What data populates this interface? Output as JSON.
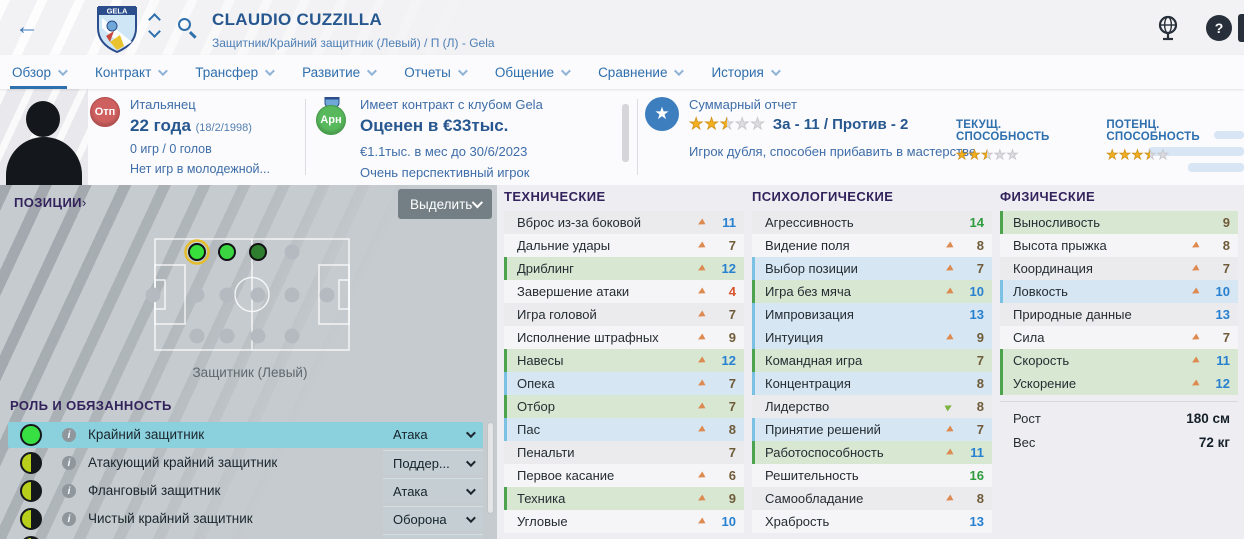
{
  "header": {
    "title": "CLAUDIO CUZZILLA",
    "subtitle": "Защитник/Крайний защитник (Левый) / П (Л) - Gela",
    "club": "GELA"
  },
  "tabs": [
    {
      "label": "Обзор",
      "active": true
    },
    {
      "label": "Контракт",
      "active": false
    },
    {
      "label": "Трансфер",
      "active": false
    },
    {
      "label": "Развитие",
      "active": false
    },
    {
      "label": "Отчеты",
      "active": false
    },
    {
      "label": "Общение",
      "active": false
    },
    {
      "label": "Сравнение",
      "active": false
    },
    {
      "label": "История",
      "active": false
    }
  ],
  "info": {
    "personal": {
      "badge": "Отп",
      "nationality": "Итальянец",
      "age": "22 года",
      "birthdate": "(18/2/1998)",
      "appearances": "0 игр / 0 голов",
      "youth": "Нет игр в молодежной..."
    },
    "contract": {
      "badge": "Арн",
      "line1": "Имеет контракт с клубом Gela",
      "line2": "Оценен в €33тыс.",
      "line3": "€1.1тыс. в мес до 30/6/2023",
      "line4": "Очень перспективный игрок"
    },
    "report": {
      "title": "Суммарный отчет",
      "stars": 2.5,
      "votes": "За - 11 / Против - 2",
      "summary": "Игрок дубля, способен прибавить в мастерстве"
    },
    "ability": {
      "current_label": "ТЕКУЩ. СПОСОБНОСТЬ",
      "current_stars": 2.5,
      "potential_label": "ПОТЕНЦ. СПОСОБНОСТЬ",
      "potential_stars": 3.5
    }
  },
  "positions": {
    "title": "ПОЗИЦИИ",
    "chevron": "›",
    "select_button": "Выделить",
    "position_label": "Защитник (Левый)"
  },
  "roles": {
    "title": "РОЛЬ И ОБЯЗАННОСТЬ",
    "items": [
      {
        "name": "Крайний защитник",
        "duty": "Атака",
        "selected": true,
        "marker": "full"
      },
      {
        "name": "Атакующий крайний защитник",
        "duty": "Поддер...",
        "selected": false,
        "marker": "half"
      },
      {
        "name": "Фланговый защитник",
        "duty": "Атака",
        "selected": false,
        "marker": "half"
      },
      {
        "name": "Чистый крайний защитник",
        "duty": "Оборона",
        "selected": false,
        "marker": "half"
      }
    ]
  },
  "attributes": {
    "technical": {
      "title": "ТЕХНИЧЕСКИЕ",
      "rows": [
        {
          "label": "Вброс из-за боковой",
          "value": 11,
          "arrow": "down",
          "highlight": "none"
        },
        {
          "label": "Дальние удары",
          "value": 7,
          "arrow": "down",
          "highlight": "none"
        },
        {
          "label": "Дриблинг",
          "value": 12,
          "arrow": "down",
          "highlight": "key"
        },
        {
          "label": "Завершение атаки",
          "value": 4,
          "arrow": "down",
          "highlight": "none"
        },
        {
          "label": "Игра головой",
          "value": 7,
          "arrow": "down",
          "highlight": "none"
        },
        {
          "label": "Исполнение штрафных",
          "value": 9,
          "arrow": "down",
          "highlight": "none"
        },
        {
          "label": "Навесы",
          "value": 12,
          "arrow": "down",
          "highlight": "key"
        },
        {
          "label": "Опека",
          "value": 7,
          "arrow": "down",
          "highlight": "pref"
        },
        {
          "label": "Отбор",
          "value": 7,
          "arrow": "down",
          "highlight": "key"
        },
        {
          "label": "Пас",
          "value": 8,
          "arrow": "down",
          "highlight": "pref"
        },
        {
          "label": "Пенальти",
          "value": 7,
          "arrow": "none",
          "highlight": "none"
        },
        {
          "label": "Первое касание",
          "value": 6,
          "arrow": "down",
          "highlight": "none"
        },
        {
          "label": "Техника",
          "value": 9,
          "arrow": "down",
          "highlight": "key"
        },
        {
          "label": "Угловые",
          "value": 10,
          "arrow": "down",
          "highlight": "none"
        }
      ]
    },
    "psychological": {
      "title": "ПСИХОЛОГИЧЕСКИЕ",
      "rows": [
        {
          "label": "Агрессивность",
          "value": 14,
          "arrow": "none",
          "highlight": "none"
        },
        {
          "label": "Видение поля",
          "value": 8,
          "arrow": "down",
          "highlight": "none"
        },
        {
          "label": "Выбор позиции",
          "value": 7,
          "arrow": "down",
          "highlight": "pref"
        },
        {
          "label": "Игра без мяча",
          "value": 10,
          "arrow": "down",
          "highlight": "key"
        },
        {
          "label": "Импровизация",
          "value": 13,
          "arrow": "none",
          "highlight": "pref"
        },
        {
          "label": "Интуиция",
          "value": 9,
          "arrow": "down",
          "highlight": "pref"
        },
        {
          "label": "Командная игра",
          "value": 7,
          "arrow": "none",
          "highlight": "key"
        },
        {
          "label": "Концентрация",
          "value": 8,
          "arrow": "none",
          "highlight": "pref"
        },
        {
          "label": "Лидерство",
          "value": 8,
          "arrow": "up",
          "highlight": "none"
        },
        {
          "label": "Принятие решений",
          "value": 7,
          "arrow": "down",
          "highlight": "pref"
        },
        {
          "label": "Работоспособность",
          "value": 11,
          "arrow": "down",
          "highlight": "key"
        },
        {
          "label": "Решительность",
          "value": 16,
          "arrow": "none",
          "highlight": "none"
        },
        {
          "label": "Самообладание",
          "value": 8,
          "arrow": "down",
          "highlight": "none"
        },
        {
          "label": "Храбрость",
          "value": 13,
          "arrow": "none",
          "highlight": "none"
        }
      ]
    },
    "physical": {
      "title": "ФИЗИЧЕСКИЕ",
      "rows": [
        {
          "label": "Выносливость",
          "value": 9,
          "arrow": "none",
          "highlight": "key"
        },
        {
          "label": "Высота прыжка",
          "value": 8,
          "arrow": "down",
          "highlight": "none"
        },
        {
          "label": "Координация",
          "value": 7,
          "arrow": "down",
          "highlight": "none"
        },
        {
          "label": "Ловкость",
          "value": 10,
          "arrow": "down",
          "highlight": "pref"
        },
        {
          "label": "Природные данные",
          "value": 13,
          "arrow": "none",
          "highlight": "none"
        },
        {
          "label": "Сила",
          "value": 7,
          "arrow": "down",
          "highlight": "none"
        },
        {
          "label": "Скорость",
          "value": 11,
          "arrow": "down",
          "highlight": "key"
        },
        {
          "label": "Ускорение",
          "value": 12,
          "arrow": "down",
          "highlight": "key"
        }
      ]
    }
  },
  "physio": {
    "height_label": "Рост",
    "height_value": "180 см",
    "weight_label": "Вес",
    "weight_value": "72 кг"
  },
  "colors": {
    "accent_blue": "#2e6fad",
    "key_green": "#4da34d",
    "pref_blue": "#7cc0e4",
    "star_gold": "#f2b01e",
    "selected_role_cyan": "#8ad0dd"
  }
}
